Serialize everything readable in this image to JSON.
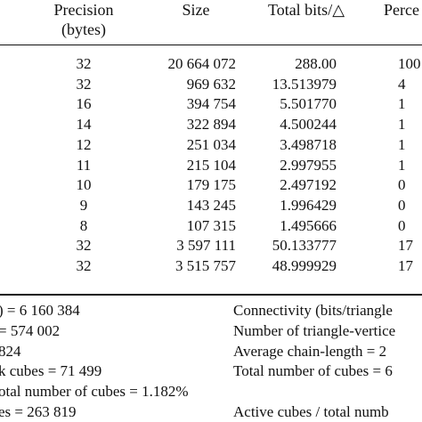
{
  "table": {
    "columns": {
      "precision": "Precision\n(bytes)",
      "size": "Size",
      "total_bits": "Total bits/△",
      "percent": "Perce"
    },
    "rows": [
      {
        "precision": "32",
        "size": "20 664 072",
        "total_bits": "288.00",
        "percent": "100"
      },
      {
        "precision": "32",
        "size": "969 632",
        "total_bits": "13.513979",
        "percent": "4"
      },
      {
        "precision": "16",
        "size": "394 754",
        "total_bits": "5.501770",
        "percent": "1"
      },
      {
        "precision": "14",
        "size": "322 894",
        "total_bits": "4.500244",
        "percent": "1"
      },
      {
        "precision": "12",
        "size": "251 034",
        "total_bits": "3.498718",
        "percent": "1"
      },
      {
        "precision": "11",
        "size": "215 104",
        "total_bits": "2.997955",
        "percent": "1"
      },
      {
        "precision": "10",
        "size": "179 175",
        "total_bits": "2.497192",
        "percent": "0"
      },
      {
        "precision": "9",
        "size": "143 245",
        "total_bits": "1.996429",
        "percent": "0"
      },
      {
        "precision": "8",
        "size": "107 315",
        "total_bits": "1.495666",
        "percent": "0"
      },
      {
        "precision": "32",
        "size": "3 597 111",
        "total_bits": "50.133777",
        "percent": "17"
      },
      {
        "precision": "32",
        "size": "3 515 757",
        "total_bits": "48.999929",
        "percent": "17"
      }
    ]
  },
  "stats": {
    "left": [
      ") = 6 160 384",
      "= 574 002",
      "824",
      "k cubes = 71 499",
      "otal number of cubes = 1.182%",
      "es = 263 819"
    ],
    "right": [
      "Connectivity (bits/triangle",
      "Number of triangle-vertice",
      "Average chain-length = 2",
      "Total number of cubes = 6",
      "",
      "Active cubes / total numb"
    ]
  }
}
